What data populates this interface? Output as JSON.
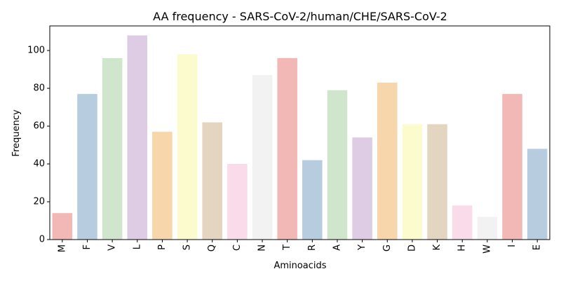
{
  "chart_data": {
    "type": "bar",
    "title": "AA frequency - SARS-CoV-2/human/CHE/SARS-CoV-2",
    "xlabel": "Aminoacids",
    "ylabel": "Frequency",
    "ylim": [
      0,
      113
    ],
    "yticks": [
      0,
      20,
      40,
      60,
      80,
      100
    ],
    "grid": false,
    "categories": [
      "M",
      "F",
      "V",
      "L",
      "P",
      "S",
      "Q",
      "C",
      "N",
      "T",
      "R",
      "A",
      "Y",
      "G",
      "D",
      "K",
      "H",
      "W",
      "I",
      "E"
    ],
    "values": [
      14,
      77,
      96,
      108,
      57,
      98,
      62,
      40,
      87,
      96,
      42,
      79,
      54,
      83,
      61,
      61,
      18,
      12,
      77,
      48
    ],
    "colors": [
      "#f2b8b5",
      "#b8cce0",
      "#cfe6cc",
      "#ddcce3",
      "#f6d6aa",
      "#fbfbcd",
      "#e3d5c0",
      "#f9dbea",
      "#f2f2f2",
      "#f2b8b5",
      "#b8cce0",
      "#cfe6cc",
      "#ddcce3",
      "#f6d6aa",
      "#fbfbcd",
      "#e3d5c0",
      "#f9dbea",
      "#f2f2f2",
      "#f2b8b5",
      "#b8cce0"
    ]
  }
}
